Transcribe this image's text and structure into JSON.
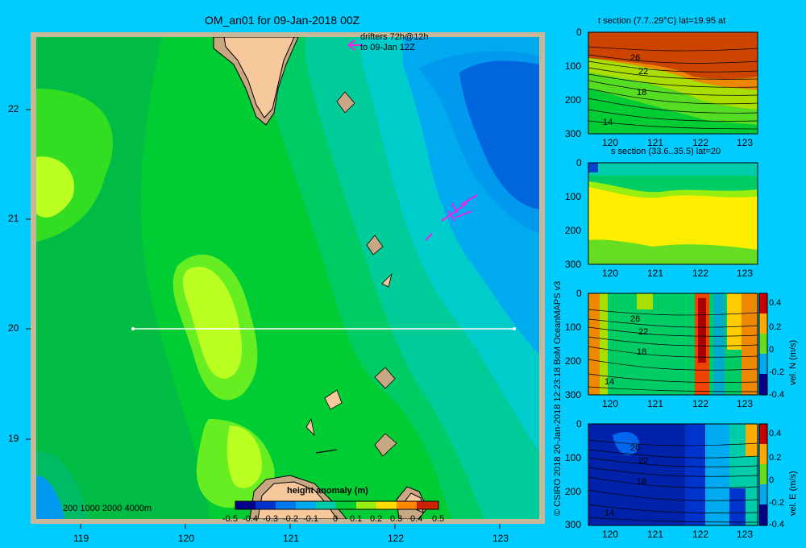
{
  "map": {
    "title": "OM_an01 for 09-Jan-2018 00Z",
    "drifters_label_1": "drifters 72h@12h",
    "drifters_label_2": "to 09-Jan 12Z",
    "x_ticks": [
      "119",
      "120",
      "121",
      "122",
      "123"
    ],
    "y_ticks": [
      "22",
      "21",
      "20",
      "19"
    ],
    "depth_scale": "200  1000  2000  4000m",
    "colorbar_title": "height anomaly  (m)",
    "colorbar_ticks": [
      "-0.5",
      "-0.4",
      "-0.3",
      "-0.2",
      "-0.1",
      "0",
      "0.1",
      "0.2",
      "0.3",
      "0.4",
      "0.5"
    ],
    "colors": {
      "land": "#f7c89b",
      "shelf": "#c8a882",
      "frame": "#c8b89a"
    }
  },
  "side_label": "© CSIRO 2018   20-Jan-2018 12:23:18 BoM OceanMAPS v3",
  "sections": [
    {
      "title": "t section (7.7..29°C) lat=19.95 at",
      "x_ticks": [
        "120",
        "121",
        "122",
        "123"
      ],
      "y_ticks": [
        "0",
        "100",
        "200",
        "300"
      ],
      "contour_labels": [
        "26",
        "22",
        "18",
        "14"
      ]
    },
    {
      "title": "s section (33.6..35.5) lat=20",
      "x_ticks": [
        "120",
        "121",
        "122",
        "123"
      ],
      "y_ticks": [
        "0",
        "100",
        "200",
        "300"
      ]
    },
    {
      "title": "",
      "x_ticks": [
        "120",
        "121",
        "122",
        "123"
      ],
      "y_ticks": [
        "0",
        "100",
        "200",
        "300"
      ],
      "contour_labels": [
        "26",
        "22",
        "18",
        "14"
      ],
      "colorbar_ticks": [
        "0.4",
        "0.2",
        "0",
        "-0.2",
        "-0.4"
      ],
      "colorbar_label": "vel. N  (m/s)"
    },
    {
      "title": "",
      "x_ticks": [
        "120",
        "121",
        "122",
        "123"
      ],
      "y_ticks": [
        "0",
        "100",
        "200",
        "300"
      ],
      "contour_labels": [
        "26",
        "22",
        "18",
        "14"
      ],
      "colorbar_ticks": [
        "0.4",
        "0.2",
        "0",
        "-0.2",
        "-0.4"
      ],
      "colorbar_label": "vel. E  (m/s)"
    }
  ]
}
